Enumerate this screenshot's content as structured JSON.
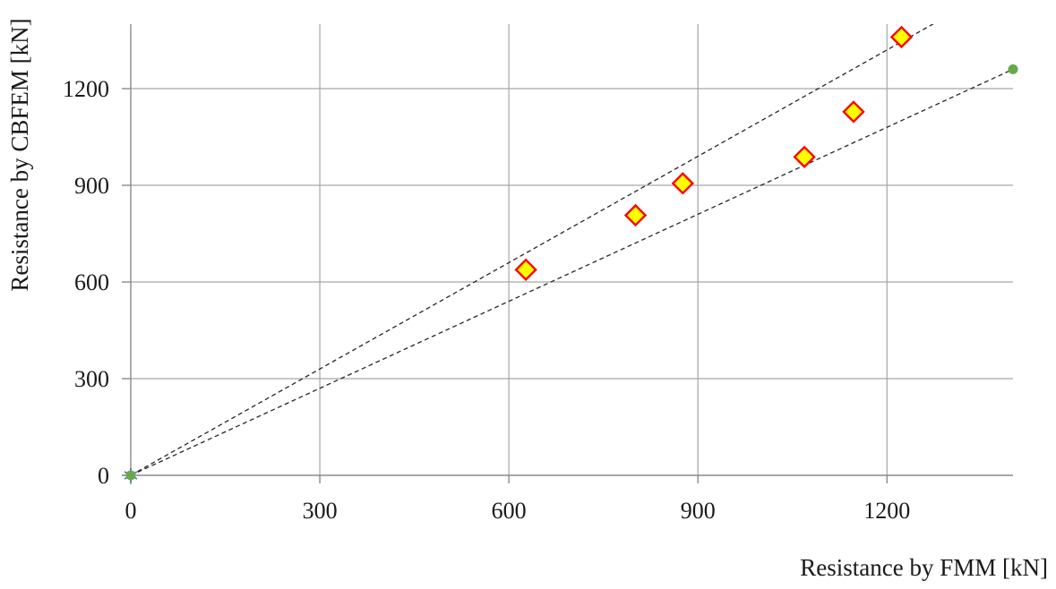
{
  "page": {
    "background": "#ffffff"
  },
  "chart_data": {
    "type": "scatter",
    "title": "",
    "xlabel": "Resistance by FMM [kN]",
    "ylabel": "Resistance by CBFEM [kN]",
    "xlim": [
      0,
      1400
    ],
    "ylim": [
      0,
      1400
    ],
    "x_ticks": [
      0,
      300,
      600,
      900,
      1200
    ],
    "y_ticks": [
      0,
      300,
      600,
      900,
      1200
    ],
    "grid": true,
    "legend": "none",
    "colors": {
      "gridline": "#a6a6a6",
      "axis": "#8a8a8a",
      "tick_label": "#1a1a1a",
      "dashed_line": "#262626",
      "diamond_fill": "#ffff00",
      "diamond_stroke": "#ff0000",
      "bound_marker_green": "#6aa84c",
      "origin_asterisk_blue": "#4472c4"
    },
    "series": [
      {
        "name": "tolerance-band-upper-110pct",
        "type": "line",
        "style": "dashed",
        "color": "#262626",
        "points": [
          [
            0,
            0
          ],
          [
            1400,
            1540
          ]
        ]
      },
      {
        "name": "tolerance-band-lower-90pct",
        "type": "line",
        "style": "dashed",
        "color": "#262626",
        "points": [
          [
            0,
            0
          ],
          [
            1400,
            1260
          ]
        ]
      },
      {
        "name": "origin-reference",
        "type": "scatter",
        "marker": {
          "shape": "asterisk",
          "stroke": "#4472c4"
        },
        "points": [
          [
            0,
            0
          ]
        ]
      },
      {
        "name": "tolerance-band-endpoints",
        "type": "scatter",
        "marker": {
          "shape": "circle",
          "fill": "#6aa84c"
        },
        "points": [
          [
            0,
            0
          ],
          [
            1400,
            1260
          ]
        ]
      },
      {
        "name": "cbfem-vs-fmm-resistance",
        "type": "scatter",
        "marker": {
          "shape": "diamond",
          "fill": "#ffff00",
          "stroke": "#ff0000"
        },
        "points": [
          [
            627,
            638
          ],
          [
            801,
            807
          ],
          [
            876,
            906
          ],
          [
            1069,
            988
          ],
          [
            1147,
            1128
          ],
          [
            1223,
            1360
          ]
        ]
      }
    ]
  }
}
